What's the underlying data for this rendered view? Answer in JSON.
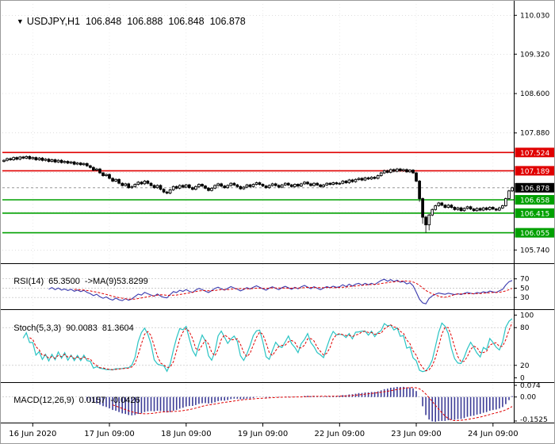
{
  "header": {
    "collapse_icon": "▼",
    "title": "USDJPY,H1",
    "open": "106.848",
    "high": "106.888",
    "low": "106.848",
    "close": "106.878"
  },
  "indicators": {
    "rsi": {
      "name": "RSI(14)",
      "value": "65.3500",
      "ma_label": "->MA(9)",
      "ma_value": "53.8299"
    },
    "stoch": {
      "name": "Stoch(5,3,3)",
      "k_value": "90.0083",
      "d_value": "81.3604"
    },
    "macd": {
      "name": "MACD(12,26,9)",
      "main_value": "0.0157",
      "signal_value": "-0.0426"
    }
  },
  "colors": {
    "background": "#FFFFFF",
    "text": "#000000",
    "grid": "#C9C9C9",
    "level_line": "#BBBBBB",
    "candle": "#000000",
    "bull_fill": "#FFFFFF",
    "bear_fill": "#000000",
    "resistance": "#E00000",
    "support": "#00A000",
    "current_price_bg": "#000000",
    "bid_line": "#888888",
    "rsi_line": "#3A3AAE",
    "signal_line": "#E00000",
    "stoch_line": "#2AC4C4",
    "macd_histogram": "#3C3C96",
    "axis_text": "#000000"
  },
  "chart_data": [
    {
      "type": "candlestick",
      "symbol": "USDJPY",
      "timeframe": "H1",
      "ylim": [
        105.6,
        110.18
      ],
      "y_ticks": [
        {
          "label": "110.030",
          "value": 110.03
        },
        {
          "label": "109.320",
          "value": 109.32
        },
        {
          "label": "108.600",
          "value": 108.6
        },
        {
          "label": "107.880",
          "value": 107.88
        },
        {
          "label": "105.740",
          "value": 105.74
        }
      ],
      "grid_values": [
        110.03,
        109.32,
        108.6,
        107.88,
        107.16,
        106.44,
        105.74
      ],
      "hlines": [
        {
          "value": 107.524,
          "label": "107.524",
          "type": "resistance"
        },
        {
          "value": 107.189,
          "label": "107.189",
          "type": "resistance"
        },
        {
          "value": 106.658,
          "label": "106.658",
          "type": "support"
        },
        {
          "value": 106.415,
          "label": "106.415",
          "type": "support"
        },
        {
          "value": 106.055,
          "label": "106.055",
          "type": "support"
        }
      ],
      "current_price": {
        "value": 106.878,
        "label": "106.878"
      },
      "x_labels": [
        "16 Jun 2020",
        "17 Jun 09:00",
        "18 Jun 09:00",
        "19 Jun 09:00",
        "22 Jun 09:00",
        "23 Jun 09:00",
        "24 Jun 09:00"
      ],
      "x_label_bars": [
        9,
        33,
        57,
        81,
        105,
        129,
        153
      ],
      "open_first": 107.36,
      "wick_default": 0.02,
      "wick_overrides": {
        "130": [
          0.02,
          0.06
        ],
        "131": [
          0.02,
          0.12
        ],
        "132": [
          0.03,
          0.145
        ],
        "133": [
          0.02,
          0.1
        ]
      },
      "closes": [
        107.38,
        107.41,
        107.39,
        107.43,
        107.4,
        107.44,
        107.42,
        107.45,
        107.41,
        107.43,
        107.39,
        107.42,
        107.38,
        107.4,
        107.36,
        107.39,
        107.35,
        107.38,
        107.34,
        107.36,
        107.33,
        107.35,
        107.31,
        107.33,
        107.3,
        107.32,
        107.28,
        107.25,
        107.2,
        107.22,
        107.15,
        107.1,
        107.12,
        107.05,
        107.0,
        107.03,
        106.96,
        106.92,
        106.95,
        106.88,
        106.9,
        106.94,
        106.98,
        106.95,
        107.0,
        106.96,
        106.92,
        106.88,
        106.92,
        106.85,
        106.8,
        106.78,
        106.84,
        106.9,
        106.87,
        106.92,
        106.89,
        106.93,
        106.88,
        106.85,
        106.9,
        106.94,
        106.91,
        106.87,
        106.83,
        106.87,
        106.92,
        106.95,
        106.91,
        106.88,
        106.92,
        106.96,
        106.93,
        106.9,
        106.86,
        106.89,
        106.93,
        106.9,
        106.94,
        106.97,
        106.94,
        106.91,
        106.88,
        106.92,
        106.95,
        106.92,
        106.89,
        106.93,
        106.96,
        106.93,
        106.9,
        106.94,
        106.91,
        106.95,
        106.98,
        106.95,
        106.92,
        106.96,
        106.93,
        106.9,
        106.93,
        106.96,
        106.94,
        106.97,
        106.95,
        106.96,
        107.0,
        106.97,
        107.02,
        106.99,
        107.03,
        107.05,
        107.02,
        107.06,
        107.04,
        107.07,
        107.05,
        107.1,
        107.15,
        107.19,
        107.16,
        107.21,
        107.18,
        107.22,
        107.19,
        107.21,
        107.17,
        107.2,
        107.15,
        107.0,
        106.68,
        106.34,
        106.2,
        106.38,
        106.48,
        106.55,
        106.6,
        106.56,
        106.52,
        106.56,
        106.52,
        106.48,
        106.51,
        106.46,
        106.5,
        106.53,
        106.49,
        106.46,
        106.5,
        106.47,
        106.51,
        106.48,
        106.52,
        106.49,
        106.47,
        106.51,
        106.55,
        106.68,
        106.82,
        106.878
      ]
    },
    {
      "type": "line",
      "name": "RSI",
      "derived_from": "chart_data.0.closes",
      "period": 14,
      "ma_period": 9,
      "current": [
        65.35,
        53.8299
      ],
      "ylim": [
        10,
        95
      ],
      "levels": [
        70,
        50,
        30
      ],
      "y_ticks": [
        {
          "label": "70",
          "value": 70
        },
        {
          "label": "50",
          "value": 50
        },
        {
          "label": "30",
          "value": 30
        }
      ]
    },
    {
      "type": "line",
      "name": "Stochastic",
      "derived_from": "chart_data.0.closes",
      "k_period": 5,
      "d_period": 3,
      "slowing": 3,
      "current": [
        90.0083,
        81.3604
      ],
      "ylim": [
        -3,
        103
      ],
      "levels": [
        80,
        20
      ],
      "y_ticks": [
        {
          "label": "100",
          "value": 100
        },
        {
          "label": "80",
          "value": 80
        },
        {
          "label": "20",
          "value": 20
        },
        {
          "label": "0",
          "value": 0
        }
      ]
    },
    {
      "type": "histogram",
      "name": "MACD",
      "derived_from": "chart_data.0.closes",
      "fast": 12,
      "slow": 26,
      "signal": 9,
      "current": [
        0.0157,
        -0.0426
      ],
      "ylim": [
        -0.1525,
        0.074
      ],
      "levels": [
        0
      ],
      "y_ticks": [
        {
          "label": "0.074",
          "value": 0.074
        },
        {
          "label": "0.00",
          "value": 0
        },
        {
          "label": "-0.1525",
          "value": -0.1525
        }
      ]
    }
  ]
}
